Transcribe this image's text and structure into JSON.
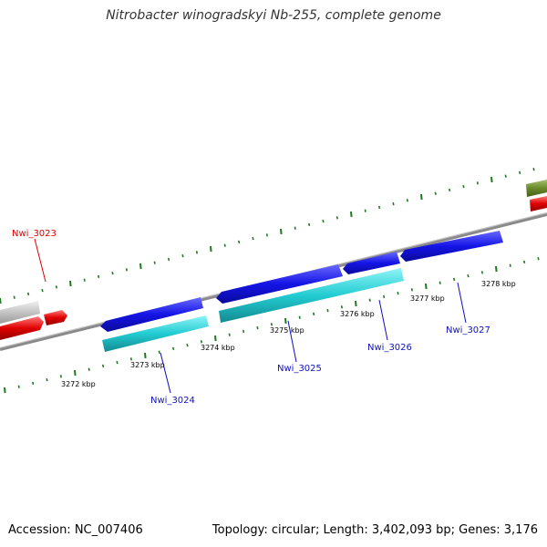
{
  "title": "Nitrobacter winogradskyi Nb-255, complete genome",
  "footer": {
    "accession": "Accession: NC_007406",
    "summary": "Topology: circular; Length: 3,402,093 bp; Genes: 3,176"
  },
  "colors": {
    "backbone": "#8a8a8a",
    "ticks": "#1f7a1f",
    "forward_gene": "#1010e0",
    "reverse_gene": "#20c8d0",
    "highlight_gene": "#e00000",
    "other_gene_olive": "#6a8a2a",
    "other_gene_gray": "#c0c0c0"
  },
  "tick_labels": [
    "3272 kbp",
    "3273 kbp",
    "3274 kbp",
    "3275 kbp",
    "3276 kbp",
    "3277 kbp",
    "3278 kbp"
  ],
  "genes": [
    {
      "name": "Nwi_3023",
      "color": "#e00000"
    },
    {
      "name": "Nwi_3024",
      "color": "#1010c0"
    },
    {
      "name": "Nwi_3025",
      "color": "#1010c0"
    },
    {
      "name": "Nwi_3026",
      "color": "#1010c0"
    },
    {
      "name": "Nwi_3027",
      "color": "#1010c0"
    }
  ]
}
